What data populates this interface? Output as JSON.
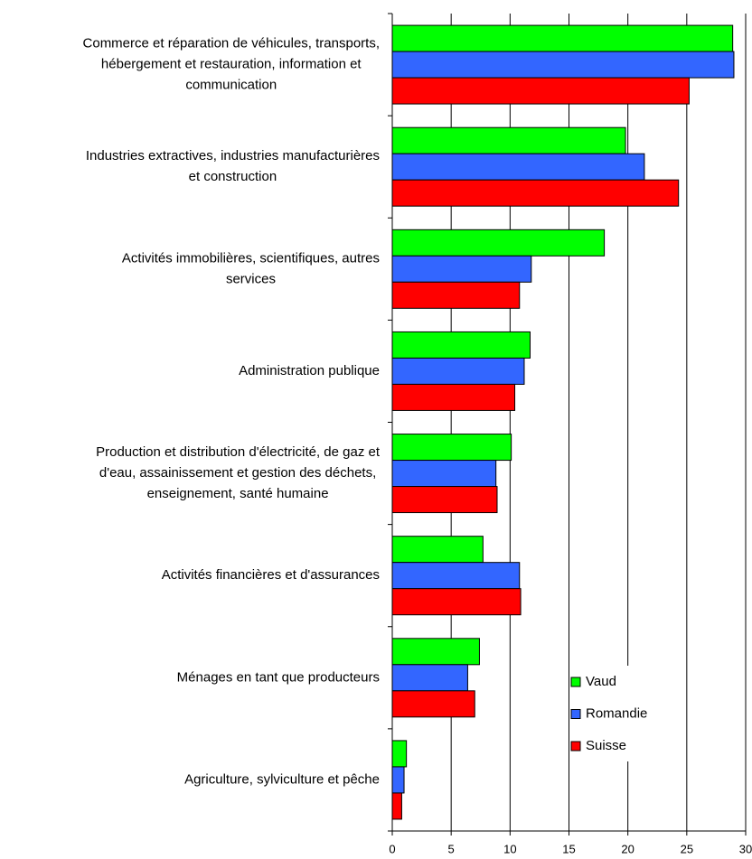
{
  "chart_data": {
    "type": "barh",
    "categories": [
      [
        "Commerce et réparation de véhicules, transports,",
        "hébergement et restauration, information et",
        "communication"
      ],
      [
        "Industries extractives, industries manufacturières",
        "et construction"
      ],
      [
        "Activités immobilières, scientifiques, autres",
        "services"
      ],
      [
        "Administration publique"
      ],
      [
        "Production et distribution d'électricité, de gaz et",
        "d'eau, assainissement et gestion des déchets,",
        "enseignement, santé humaine"
      ],
      [
        "Activités financières et d'assurances"
      ],
      [
        "Ménages en tant que producteurs"
      ],
      [
        "Agriculture, sylviculture et pêche"
      ]
    ],
    "series": [
      {
        "name": "Vaud",
        "color": "#00ff00",
        "values": [
          28.9,
          19.8,
          18.0,
          11.7,
          10.1,
          7.7,
          7.4,
          1.2
        ]
      },
      {
        "name": "Romandie",
        "color": "#3366ff",
        "values": [
          29.0,
          21.4,
          11.8,
          11.2,
          8.8,
          10.8,
          6.4,
          1.0
        ]
      },
      {
        "name": "Suisse",
        "color": "#ff0000",
        "values": [
          25.2,
          24.3,
          10.8,
          10.4,
          8.9,
          10.9,
          7.0,
          0.8
        ]
      }
    ],
    "xlim": [
      0,
      30
    ],
    "xticks": [
      0,
      5,
      10,
      15,
      20,
      25,
      30
    ],
    "grid": true,
    "legend": "lower right"
  }
}
